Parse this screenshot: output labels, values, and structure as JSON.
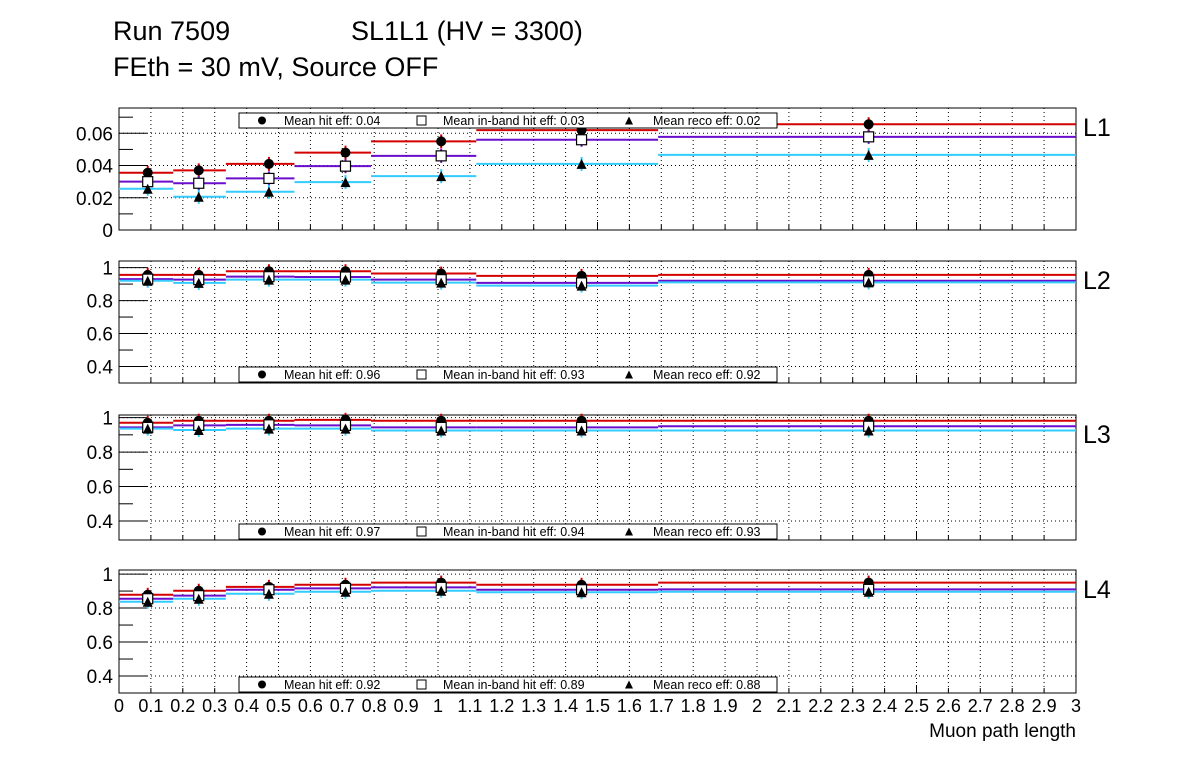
{
  "title": {
    "run": "Run 7509",
    "chamber": "SL1L1 (HV = 3300)",
    "line2": "FEth = 30 mV, Source OFF"
  },
  "colors": {
    "hit": "#d40000",
    "inband": "#6a0dcc",
    "reco": "#33ccff"
  },
  "chart_data": {
    "type": "line",
    "xlabel": "Muon path length",
    "xlim": [
      0,
      3
    ],
    "x_tick_labels": [
      "0",
      "0.1",
      "0.2",
      "0.3",
      "0.4",
      "0.5",
      "0.6",
      "0.7",
      "0.8",
      "0.9",
      "1",
      "1.1",
      "1.2",
      "1.3",
      "1.4",
      "1.5",
      "1.6",
      "1.7",
      "1.8",
      "1.9",
      "2",
      "2.1",
      "2.2",
      "2.3",
      "2.4",
      "2.5",
      "2.6",
      "2.7",
      "2.8",
      "2.9",
      "3"
    ],
    "bin_edges": [
      0,
      0.17,
      0.335,
      0.55,
      0.79,
      1.12,
      1.69,
      3
    ],
    "point_x": [
      0.09,
      0.25,
      0.47,
      0.71,
      1.01,
      1.45,
      2.35
    ],
    "grid": true,
    "panels": [
      {
        "label": "L1",
        "ylim": [
          0,
          0.0757
        ],
        "yticks": [
          "0",
          "0.02",
          "0.04",
          "0.06"
        ],
        "ytick_values": [
          0,
          0.02,
          0.04,
          0.06
        ],
        "legend_position": "top",
        "legend": [
          "Mean hit  eff: 0.04",
          "Mean in-band hit eff: 0.03",
          "Mean reco eff: 0.02"
        ],
        "series": [
          {
            "name": "hit",
            "values": [
              0.0355,
              0.037,
              0.041,
              0.048,
              0.055,
              0.062,
              0.0656
            ]
          },
          {
            "name": "inband",
            "values": [
              0.03,
              0.029,
              0.032,
              0.0396,
              0.046,
              0.056,
              0.0578
            ]
          },
          {
            "name": "reco",
            "values": [
              0.0256,
              0.0206,
              0.0237,
              0.0297,
              0.0334,
              0.041,
              0.0466
            ]
          }
        ]
      },
      {
        "label": "L2",
        "ylim": [
          0.3,
          1.04
        ],
        "yticks": [
          "0.4",
          "0.6",
          "0.8",
          "1"
        ],
        "ytick_values": [
          0.4,
          0.6,
          0.8,
          1
        ],
        "legend_position": "bottom",
        "legend": [
          "Mean hit  eff: 0.96",
          "Mean in-band hit eff: 0.93",
          "Mean reco eff: 0.92"
        ],
        "series": [
          {
            "name": "hit",
            "values": [
              0.956,
              0.956,
              0.978,
              0.978,
              0.964,
              0.95,
              0.956
            ]
          },
          {
            "name": "inband",
            "values": [
              0.93,
              0.927,
              0.945,
              0.943,
              0.927,
              0.907,
              0.92
            ]
          },
          {
            "name": "reco",
            "values": [
              0.92,
              0.907,
              0.927,
              0.927,
              0.909,
              0.891,
              0.91
            ]
          }
        ]
      },
      {
        "label": "L3",
        "ylim": [
          0.29,
          1.015
        ],
        "yticks": [
          "0.4",
          "0.6",
          "0.8",
          "1"
        ],
        "ytick_values": [
          0.4,
          0.6,
          0.8,
          1
        ],
        "legend_position": "bottom",
        "legend": [
          "Mean hit  eff: 0.97",
          "Mean in-band hit eff: 0.94",
          "Mean reco eff: 0.93"
        ],
        "series": [
          {
            "name": "hit",
            "values": [
              0.97,
              0.982,
              0.982,
              0.987,
              0.982,
              0.982,
              0.982
            ]
          },
          {
            "name": "inband",
            "values": [
              0.943,
              0.955,
              0.958,
              0.955,
              0.943,
              0.943,
              0.95
            ]
          },
          {
            "name": "reco",
            "values": [
              0.936,
              0.928,
              0.936,
              0.936,
              0.925,
              0.925,
              0.925
            ]
          }
        ]
      },
      {
        "label": "L4",
        "ylim": [
          0.3,
          1.024
        ],
        "yticks": [
          "0.4",
          "0.6",
          "0.8",
          "1"
        ],
        "ytick_values": [
          0.4,
          0.6,
          0.8,
          1
        ],
        "legend_position": "bottom",
        "legend": [
          "Mean hit  eff: 0.92",
          "Mean in-band hit eff: 0.89",
          "Mean reco eff: 0.88"
        ],
        "series": [
          {
            "name": "hit",
            "values": [
              0.878,
              0.902,
              0.925,
              0.937,
              0.95,
              0.937,
              0.95
            ]
          },
          {
            "name": "inband",
            "values": [
              0.855,
              0.873,
              0.908,
              0.916,
              0.922,
              0.908,
              0.91
            ]
          },
          {
            "name": "reco",
            "values": [
              0.837,
              0.855,
              0.884,
              0.896,
              0.902,
              0.893,
              0.896
            ]
          }
        ]
      }
    ]
  }
}
